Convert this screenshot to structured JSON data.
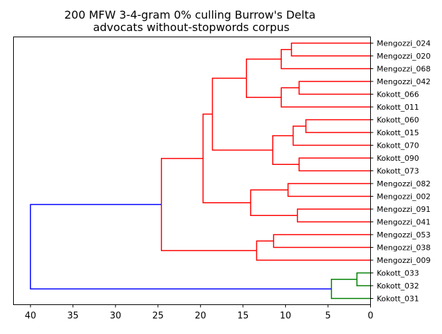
{
  "chart_data": {
    "type": "dendrogram",
    "title_lines": [
      "200 MFW 3-4-gram 0% culling Burrow's Delta",
      "advocats without-stopwords corpus"
    ],
    "xlabel": "",
    "ylabel": "",
    "orientation": "left",
    "xlim": [
      42,
      0
    ],
    "xticks": [
      40,
      35,
      30,
      25,
      20,
      15,
      10,
      5,
      0
    ],
    "grid": false,
    "legend": "none",
    "leaves": [
      "Mengozzi_024",
      "Mengozzi_020",
      "Mengozzi_068",
      "Mengozzi_042",
      "Kokott_066",
      "Kokott_011",
      "Kokott_060",
      "Kokott_015",
      "Kokott_070",
      "Kokott_090",
      "Kokott_073",
      "Mengozzi_082",
      "Mengozzi_002",
      "Mengozzi_091",
      "Mengozzi_041",
      "Mengozzi_053",
      "Mengozzi_038",
      "Mengozzi_009",
      "Kokott_033",
      "Kokott_032",
      "Kokott_031"
    ],
    "merges": [
      {
        "left": "Mengozzi_024",
        "right": "Mengozzi_020",
        "height": 9.3,
        "color": "#ff0000"
      },
      {
        "left": "L:Mengozzi_024+Mengozzi_020",
        "right": "Mengozzi_068",
        "height": 10.5,
        "color": "#ff0000"
      },
      {
        "left": "Mengozzi_042",
        "right": "Kokott_066",
        "height": 8.4,
        "color": "#ff0000"
      },
      {
        "left": "L:Mengozzi_042+Kokott_066",
        "right": "Kokott_011",
        "height": 10.5,
        "color": "#ff0000"
      },
      {
        "left": "G:Mengozzi_024-Mengozzi_068",
        "right": "G:Mengozzi_042-Kokott_011",
        "height": 14.6,
        "color": "#ff0000"
      },
      {
        "left": "Kokott_060",
        "right": "Kokott_015",
        "height": 7.6,
        "color": "#ff0000"
      },
      {
        "left": "L:Kokott_060+Kokott_015",
        "right": "Kokott_070",
        "height": 9.1,
        "color": "#ff0000"
      },
      {
        "left": "Kokott_090",
        "right": "Kokott_073",
        "height": 8.4,
        "color": "#ff0000"
      },
      {
        "left": "G:Kokott_060-Kokott_070",
        "right": "G:Kokott_090-Kokott_073",
        "height": 11.5,
        "color": "#ff0000"
      },
      {
        "left": "G:Mengozzi_024-Kokott_011",
        "right": "G:Kokott_060-Kokott_073",
        "height": 18.6,
        "color": "#ff0000"
      },
      {
        "left": "Mengozzi_082",
        "right": "Mengozzi_002",
        "height": 9.7,
        "color": "#ff0000"
      },
      {
        "left": "Mengozzi_091",
        "right": "Mengozzi_041",
        "height": 8.6,
        "color": "#ff0000"
      },
      {
        "left": "G:Mengozzi_082-Mengozzi_002",
        "right": "G:Mengozzi_091-Mengozzi_041",
        "height": 14.1,
        "color": "#ff0000"
      },
      {
        "left": "G:Mengozzi_024-Kokott_073",
        "right": "G:Mengozzi_082-Mengozzi_041",
        "height": 19.7,
        "color": "#ff0000"
      },
      {
        "left": "Mengozzi_053",
        "right": "Mengozzi_038",
        "height": 11.4,
        "color": "#ff0000"
      },
      {
        "left": "L:Mengozzi_053+Mengozzi_038",
        "right": "Mengozzi_009",
        "height": 13.4,
        "color": "#ff0000"
      },
      {
        "left": "G:Mengozzi_024-Mengozzi_041",
        "right": "G:Mengozzi_053-Mengozzi_009",
        "height": 24.6,
        "color": "#ff0000"
      },
      {
        "left": "Kokott_033",
        "right": "Kokott_032",
        "height": 1.6,
        "color": "#008000"
      },
      {
        "left": "L:Kokott_033+Kokott_032",
        "right": "Kokott_031",
        "height": 4.6,
        "color": "#008000"
      },
      {
        "left": "G:Mengozzi_024-Mengozzi_009",
        "right": "G:Kokott_033-Kokott_031",
        "height": 40.0,
        "color": "#0000ff"
      }
    ]
  }
}
